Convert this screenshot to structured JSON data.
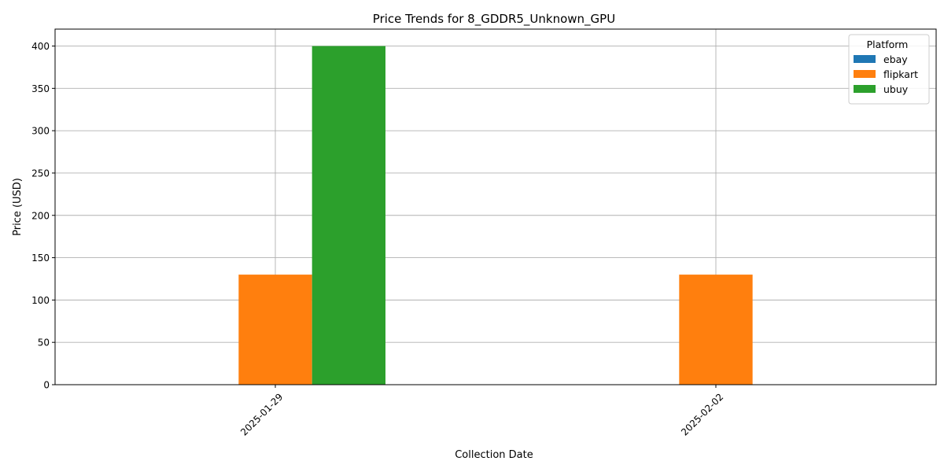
{
  "chart_data": {
    "type": "bar",
    "title": "Price Trends for 8_GDDR5_Unknown_GPU",
    "xlabel": "Collection Date",
    "ylabel": "Price (USD)",
    "categories": [
      "2025-01-29",
      "2025-02-02"
    ],
    "series": [
      {
        "name": "ebay",
        "color": "#1f77b4",
        "values": [
          0,
          0
        ]
      },
      {
        "name": "flipkart",
        "color": "#ff7f0e",
        "values": [
          130,
          130
        ]
      },
      {
        "name": "ubuy",
        "color": "#2ca02c",
        "values": [
          400,
          0
        ]
      }
    ],
    "ylim": [
      0,
      420
    ],
    "yticks": [
      0,
      50,
      100,
      150,
      200,
      250,
      300,
      350,
      400
    ],
    "grid": true,
    "legend": {
      "title": "Platform",
      "placement": "top-right"
    }
  }
}
